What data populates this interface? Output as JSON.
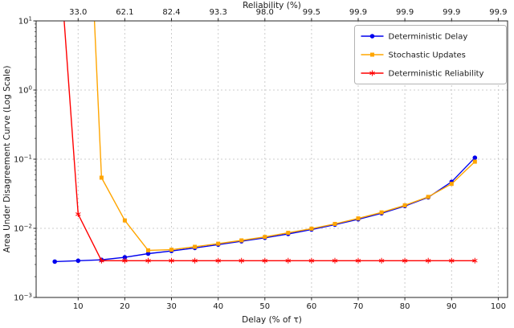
{
  "figure": {
    "top_axis_label": "Reliability (%)",
    "xlabel": "Delay (% of τ)",
    "ylabel": "Area Under Disagreement Curve (Log Scale)"
  },
  "chart_data": {
    "type": "line",
    "grid": true,
    "legend_position": "upper right",
    "x_axis": {
      "label": "Delay (% of τ)",
      "lim": [
        1,
        102
      ],
      "ticks": [
        10,
        20,
        30,
        40,
        50,
        60,
        70,
        80,
        90,
        100
      ]
    },
    "top_axis": {
      "label": "Reliability (%)",
      "tick_labels": [
        "33.0",
        "62.1",
        "82.4",
        "93.3",
        "98.0",
        "99.5",
        "99.9",
        "99.9",
        "99.9",
        "99.9"
      ]
    },
    "y_axis": {
      "label": "Area Under Disagreement Curve (Log Scale)",
      "scale": "log",
      "lim_exponents": [
        -3,
        1
      ],
      "tick_exponents": [
        1,
        0,
        -1,
        -2,
        -3
      ]
    },
    "series": [
      {
        "name": "Deterministic Delay",
        "color": "#0000ee",
        "marker": "circle",
        "points": [
          [
            5,
            0.0033
          ],
          [
            10,
            0.0034
          ],
          [
            15,
            0.0035
          ],
          [
            20,
            0.0038
          ],
          [
            25,
            0.0043
          ],
          [
            30,
            0.0047
          ],
          [
            35,
            0.0052
          ],
          [
            40,
            0.0058
          ],
          [
            45,
            0.0065
          ],
          [
            50,
            0.0073
          ],
          [
            55,
            0.0083
          ],
          [
            60,
            0.0096
          ],
          [
            65,
            0.0113
          ],
          [
            70,
            0.0135
          ],
          [
            75,
            0.0165
          ],
          [
            80,
            0.021
          ],
          [
            85,
            0.028
          ],
          [
            90,
            0.047
          ],
          [
            95,
            0.105
          ]
        ]
      },
      {
        "name": "Stochastic Updates",
        "color": "#ffa500",
        "marker": "square",
        "points": [
          [
            13.5,
            10
          ],
          [
            15,
            0.054
          ],
          [
            20,
            0.013
          ],
          [
            25,
            0.0048
          ],
          [
            30,
            0.0049
          ],
          [
            35,
            0.0054
          ],
          [
            40,
            0.006
          ],
          [
            45,
            0.0067
          ],
          [
            50,
            0.0075
          ],
          [
            55,
            0.0086
          ],
          [
            60,
            0.0099
          ],
          [
            65,
            0.0116
          ],
          [
            70,
            0.0139
          ],
          [
            75,
            0.017
          ],
          [
            80,
            0.0215
          ],
          [
            85,
            0.0285
          ],
          [
            90,
            0.044
          ],
          [
            95,
            0.092
          ]
        ]
      },
      {
        "name": "Deterministic Reliability",
        "color": "#ff0000",
        "marker": "asterisk",
        "points": [
          [
            7,
            10
          ],
          [
            10,
            0.016
          ],
          [
            15,
            0.0034
          ],
          [
            20,
            0.0034
          ],
          [
            25,
            0.0034
          ],
          [
            30,
            0.0034
          ],
          [
            35,
            0.0034
          ],
          [
            40,
            0.0034
          ],
          [
            45,
            0.0034
          ],
          [
            50,
            0.0034
          ],
          [
            55,
            0.0034
          ],
          [
            60,
            0.0034
          ],
          [
            65,
            0.0034
          ],
          [
            70,
            0.0034
          ],
          [
            75,
            0.0034
          ],
          [
            80,
            0.0034
          ],
          [
            85,
            0.0034
          ],
          [
            90,
            0.0034
          ],
          [
            95,
            0.0034
          ]
        ]
      }
    ]
  }
}
